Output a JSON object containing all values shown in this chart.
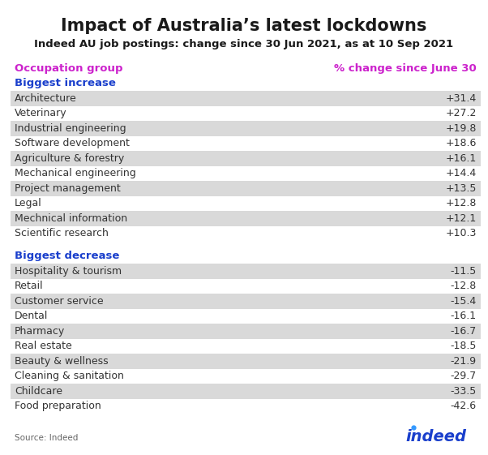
{
  "title": "Impact of Australia’s latest lockdowns",
  "subtitle": "Indeed AU job postings: change since 30 Jun 2021, as at 10 Sep 2021",
  "col_left_label": "Occupation group",
  "col_right_label": "% change since June 30",
  "section1_label": "Biggest increase",
  "section2_label": "Biggest decrease",
  "increase_rows": [
    [
      "Architecture",
      "+31.4"
    ],
    [
      "Veterinary",
      "+27.2"
    ],
    [
      "Industrial engineering",
      "+19.8"
    ],
    [
      "Software development",
      "+18.6"
    ],
    [
      "Agriculture & forestry",
      "+16.1"
    ],
    [
      "Mechanical engineering",
      "+14.4"
    ],
    [
      "Project management",
      "+13.5"
    ],
    [
      "Legal",
      "+12.8"
    ],
    [
      "Mechnical information",
      "+12.1"
    ],
    [
      "Scientific research",
      "+10.3"
    ]
  ],
  "decrease_rows": [
    [
      "Hospitality & tourism",
      "-11.5"
    ],
    [
      "Retail",
      "-12.8"
    ],
    [
      "Customer service",
      "-15.4"
    ],
    [
      "Dental",
      "-16.1"
    ],
    [
      "Pharmacy",
      "-16.7"
    ],
    [
      "Real estate",
      "-18.5"
    ],
    [
      "Beauty & wellness",
      "-21.9"
    ],
    [
      "Cleaning & sanitation",
      "-29.7"
    ],
    [
      "Childcare",
      "-33.5"
    ],
    [
      "Food preparation",
      "-42.6"
    ]
  ],
  "shaded_rows_increase": [
    0,
    2,
    4,
    6,
    8
  ],
  "shaded_rows_decrease": [
    0,
    2,
    4,
    6,
    8
  ],
  "shade_color": "#d9d9d9",
  "bg_color": "#ffffff",
  "title_color": "#1a1a1a",
  "subtitle_color": "#1a1a1a",
  "section_color": "#1a3fcc",
  "col_label_color": "#cc22cc",
  "row_text_color": "#333333",
  "source_text": "Source: Indeed",
  "indeed_text_color": "#1a3fcc",
  "indeed_dot_color": "#3399ff",
  "title_fontsize": 15,
  "subtitle_fontsize": 9.5,
  "col_label_fontsize": 9.5,
  "section_fontsize": 9.5,
  "row_fontsize": 9,
  "source_fontsize": 7.5,
  "indeed_fontsize": 14
}
